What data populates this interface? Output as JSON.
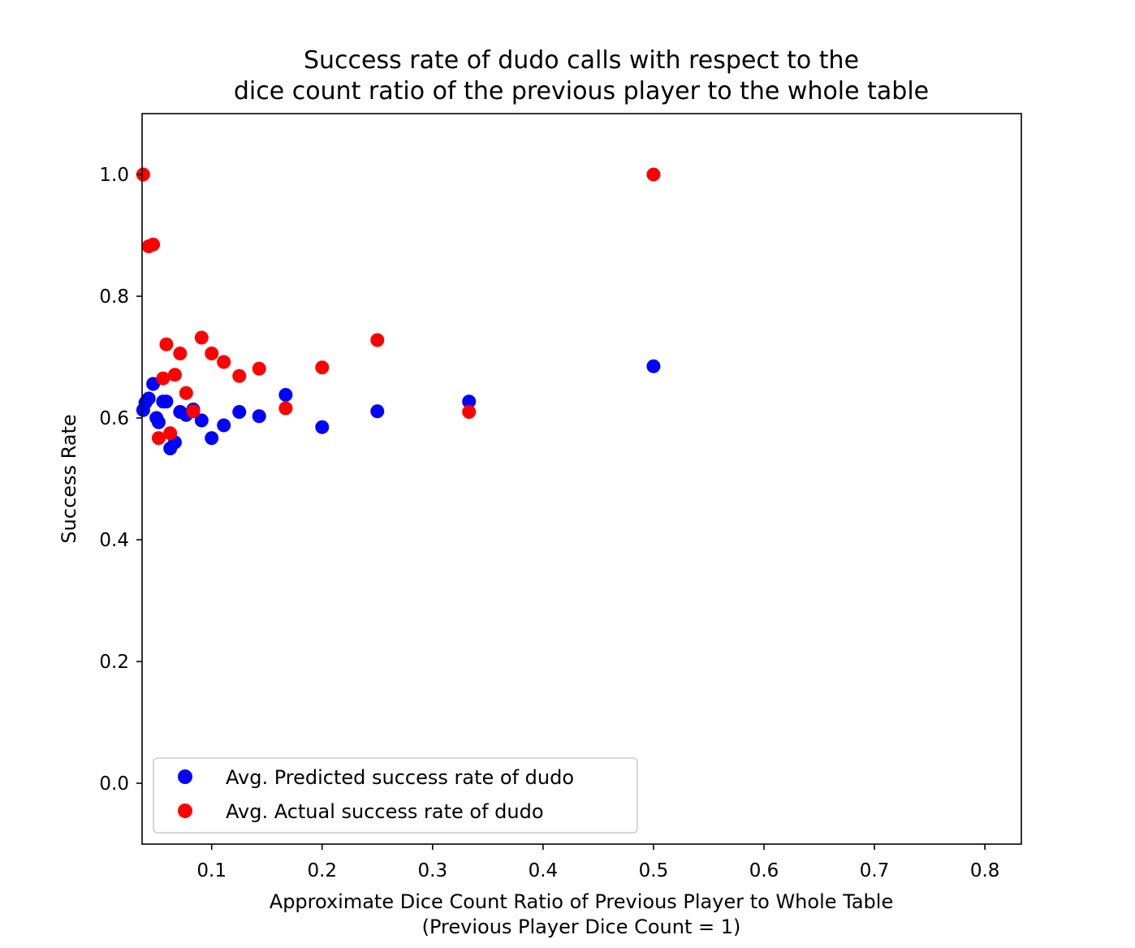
{
  "chart_data": {
    "type": "scatter",
    "title": [
      "Success rate of dudo calls with respect to the",
      "dice count ratio of the previous player to the whole table"
    ],
    "xlabel": [
      "Approximate Dice Count Ratio of Previous Player to Whole Table",
      "(Previous Player Dice Count = 1)"
    ],
    "ylabel": "Success Rate",
    "xlim": [
      0.037,
      0.833
    ],
    "ylim": [
      -0.1,
      1.1
    ],
    "xticks": [
      {
        "value": 0.1,
        "label": "0.1"
      },
      {
        "value": 0.2,
        "label": "0.2"
      },
      {
        "value": 0.3,
        "label": "0.3"
      },
      {
        "value": 0.4,
        "label": "0.4"
      },
      {
        "value": 0.5,
        "label": "0.5"
      },
      {
        "value": 0.6,
        "label": "0.6"
      },
      {
        "value": 0.7,
        "label": "0.7"
      },
      {
        "value": 0.8,
        "label": "0.8"
      }
    ],
    "yticks": [
      {
        "value": 0.0,
        "label": "0.0"
      },
      {
        "value": 0.2,
        "label": "0.2"
      },
      {
        "value": 0.4,
        "label": "0.4"
      },
      {
        "value": 0.6,
        "label": "0.6"
      },
      {
        "value": 0.8,
        "label": "0.8"
      },
      {
        "value": 1.0,
        "label": "1.0"
      }
    ],
    "grid": false,
    "legend_position": "lower-left",
    "series": [
      {
        "name": "Avg. Predicted success rate of dudo",
        "color": "#0000ff",
        "points": [
          {
            "x": 0.038,
            "y": 0.613
          },
          {
            "x": 0.04,
            "y": 0.625
          },
          {
            "x": 0.043,
            "y": 0.632
          },
          {
            "x": 0.047,
            "y": 0.656
          },
          {
            "x": 0.05,
            "y": 0.6
          },
          {
            "x": 0.052,
            "y": 0.593
          },
          {
            "x": 0.056,
            "y": 0.627
          },
          {
            "x": 0.059,
            "y": 0.627
          },
          {
            "x": 0.0625,
            "y": 0.55
          },
          {
            "x": 0.0667,
            "y": 0.56
          },
          {
            "x": 0.0714,
            "y": 0.61
          },
          {
            "x": 0.0769,
            "y": 0.605
          },
          {
            "x": 0.0833,
            "y": 0.614
          },
          {
            "x": 0.0909,
            "y": 0.596
          },
          {
            "x": 0.1,
            "y": 0.567
          },
          {
            "x": 0.111,
            "y": 0.588
          },
          {
            "x": 0.125,
            "y": 0.61
          },
          {
            "x": 0.143,
            "y": 0.603
          },
          {
            "x": 0.167,
            "y": 0.638
          },
          {
            "x": 0.2,
            "y": 0.585
          },
          {
            "x": 0.25,
            "y": 0.611
          },
          {
            "x": 0.333,
            "y": 0.627
          },
          {
            "x": 0.5,
            "y": 0.685
          }
        ]
      },
      {
        "name": "Avg. Actual success rate of dudo",
        "color": "#ff0000",
        "points": [
          {
            "x": 0.038,
            "y": 1.0
          },
          {
            "x": 0.043,
            "y": 0.882
          },
          {
            "x": 0.047,
            "y": 0.885
          },
          {
            "x": 0.052,
            "y": 0.567
          },
          {
            "x": 0.056,
            "y": 0.665
          },
          {
            "x": 0.059,
            "y": 0.721
          },
          {
            "x": 0.0625,
            "y": 0.575
          },
          {
            "x": 0.0667,
            "y": 0.671
          },
          {
            "x": 0.0714,
            "y": 0.706
          },
          {
            "x": 0.0769,
            "y": 0.641
          },
          {
            "x": 0.0833,
            "y": 0.611
          },
          {
            "x": 0.0909,
            "y": 0.732
          },
          {
            "x": 0.1,
            "y": 0.706
          },
          {
            "x": 0.111,
            "y": 0.692
          },
          {
            "x": 0.125,
            "y": 0.669
          },
          {
            "x": 0.143,
            "y": 0.681
          },
          {
            "x": 0.167,
            "y": 0.616
          },
          {
            "x": 0.2,
            "y": 0.683
          },
          {
            "x": 0.25,
            "y": 0.728
          },
          {
            "x": 0.333,
            "y": 0.61
          },
          {
            "x": 0.5,
            "y": 1.0
          }
        ]
      }
    ]
  }
}
